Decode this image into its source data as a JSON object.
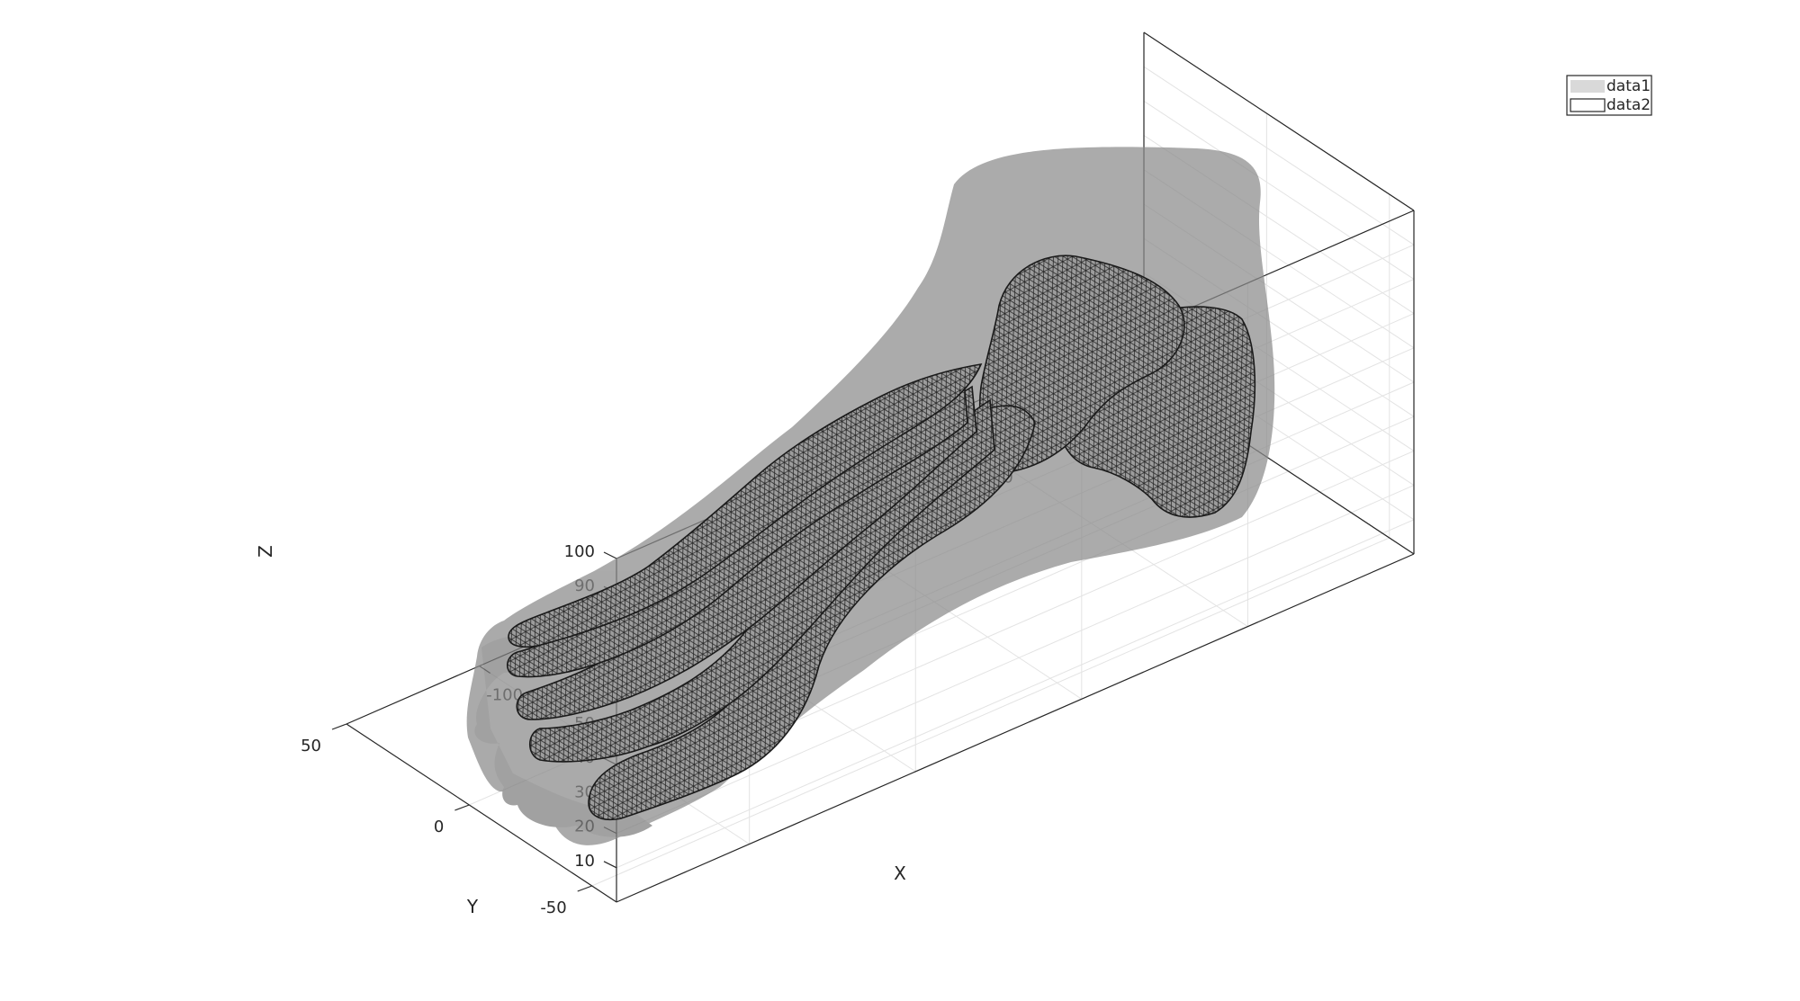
{
  "chart_data": {
    "type": "3d-surface",
    "title": "",
    "xlabel": "X",
    "ylabel": "Y",
    "zlabel": "Z",
    "xlim": [
      -140,
      100
    ],
    "ylim": [
      -60,
      50
    ],
    "zlim": [
      0,
      100
    ],
    "x_ticks": [
      -100,
      -50,
      0,
      50,
      100
    ],
    "y_ticks": [
      -50,
      0,
      50
    ],
    "z_ticks": [
      10,
      20,
      30,
      40,
      50,
      60,
      70,
      80,
      90,
      100
    ],
    "grid": true,
    "box": true,
    "legend": {
      "position": "top-right",
      "entries": [
        {
          "name": "data1",
          "style": "filled",
          "color": "#d9d9d9"
        },
        {
          "name": "data2",
          "style": "outline",
          "color": "#ffffff"
        }
      ]
    },
    "series": [
      {
        "name": "data1",
        "kind": "transparent surface (foot skin)",
        "color": "#8c8c8c",
        "alpha": 0.65
      },
      {
        "name": "data2",
        "kind": "wireframe triangulated mesh (foot bones)",
        "color": "#9a9a9a",
        "edgecolor": "#1a1a1a"
      }
    ]
  }
}
